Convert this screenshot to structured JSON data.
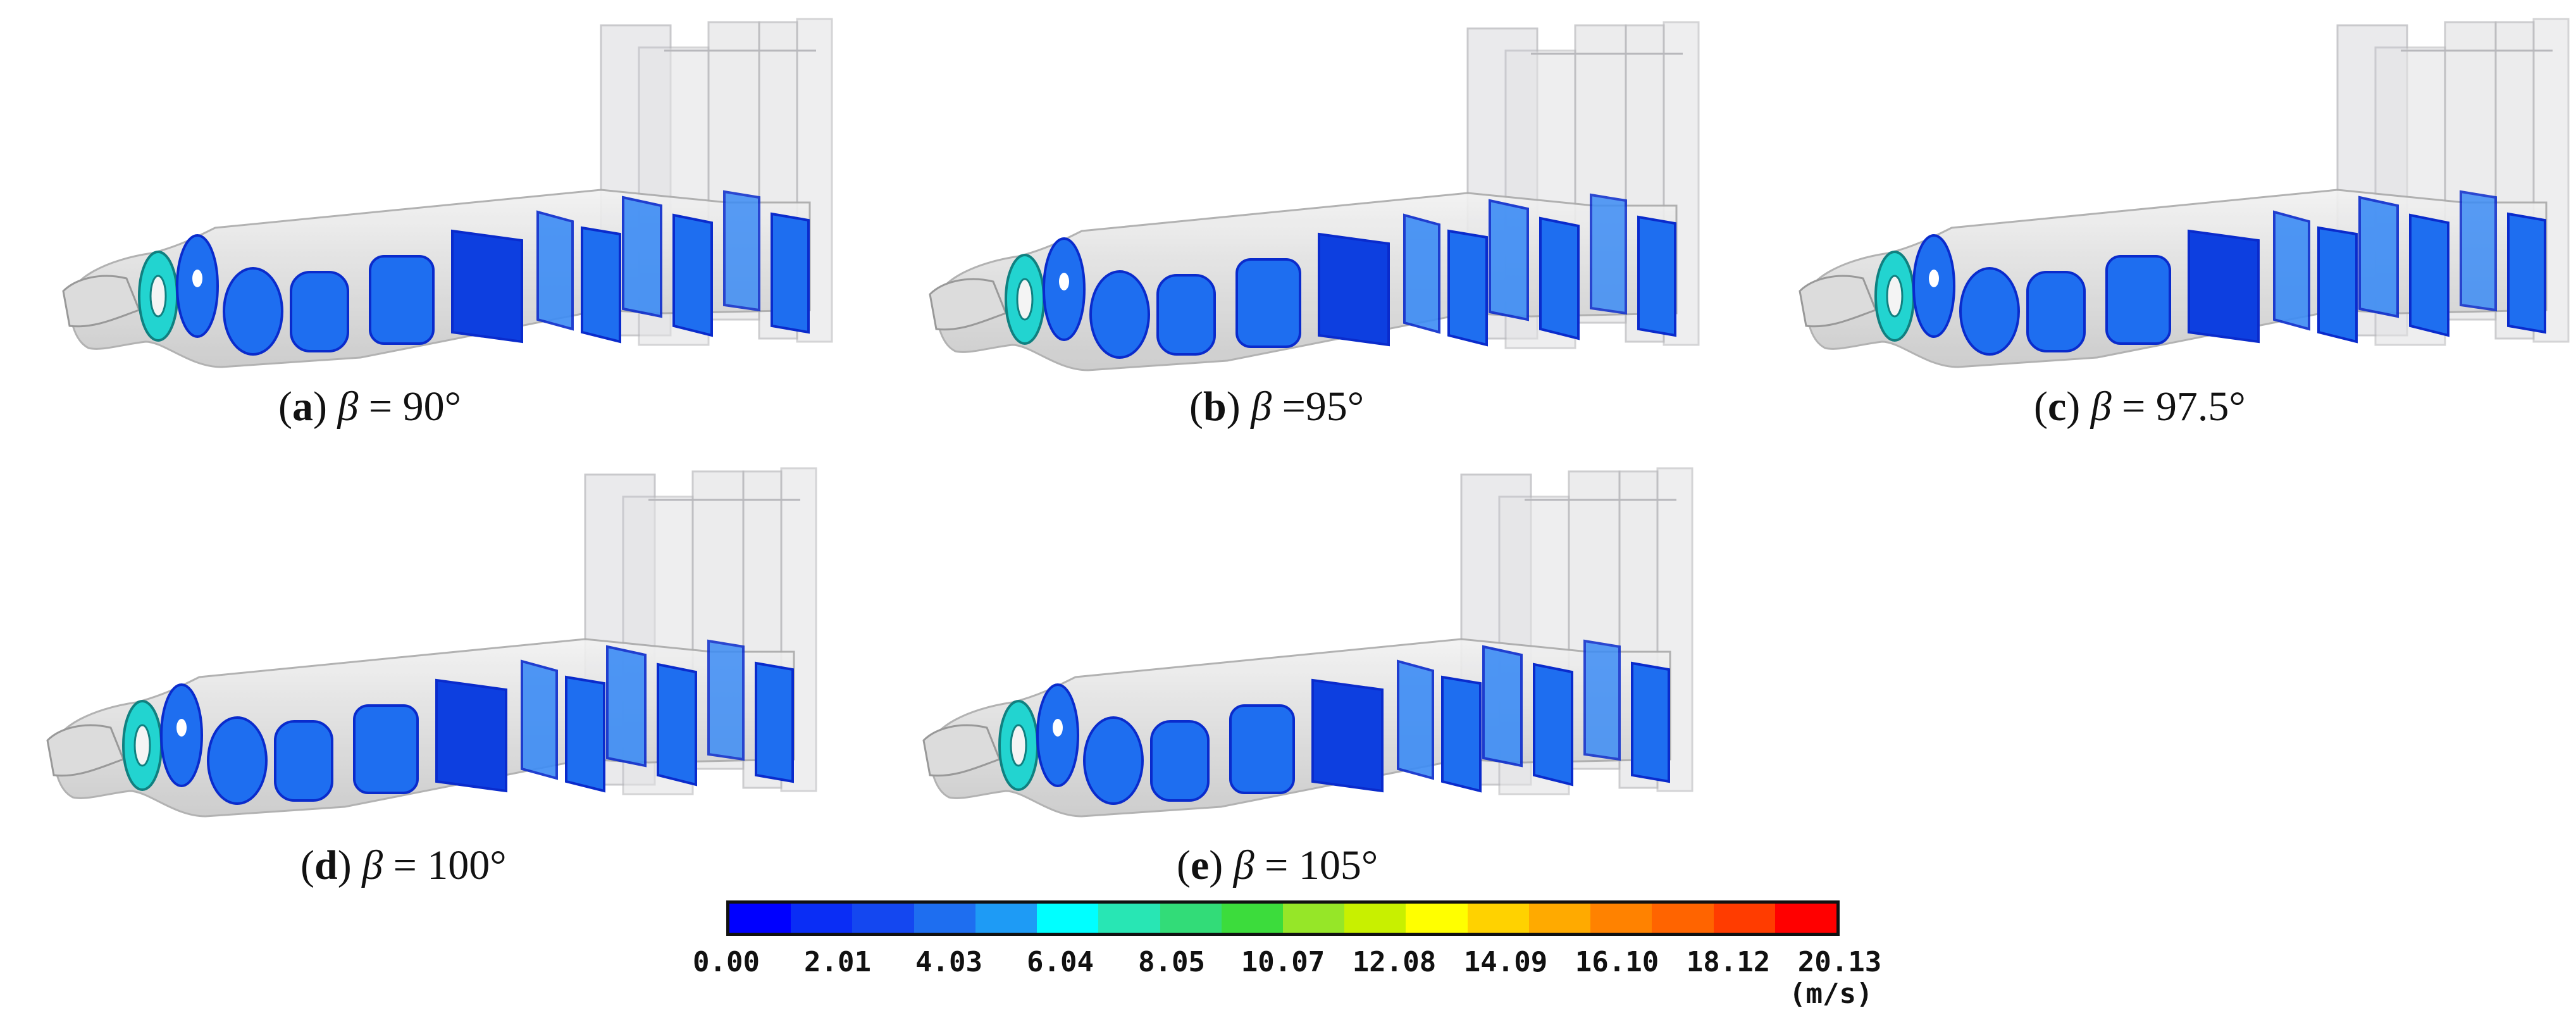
{
  "panels": [
    {
      "letter": "a",
      "symbol": "β",
      "eq": " = ",
      "value": "90°"
    },
    {
      "letter": "b",
      "symbol": "β",
      "eq": " =",
      "value": "95°"
    },
    {
      "letter": "c",
      "symbol": "β",
      "eq": " = ",
      "value": "97.5°"
    },
    {
      "letter": "d",
      "symbol": "β",
      "eq": " = ",
      "value": "100°"
    },
    {
      "letter": "e",
      "symbol": "β",
      "eq": " = ",
      "value": "105°"
    }
  ],
  "colorbar": {
    "ticks": [
      "0.00",
      "2.01",
      "4.03",
      "6.04",
      "8.05",
      "10.07",
      "12.08",
      "14.09",
      "16.10",
      "18.12",
      "20.13"
    ],
    "unit": "(m/s)",
    "range": [
      0.0,
      20.13
    ],
    "colors": [
      "#0000ff",
      "#0a2df5",
      "#1447f0",
      "#1e6ef0",
      "#1e9bf5",
      "#00ffff",
      "#28e6b4",
      "#32dc78",
      "#3cdc3c",
      "#96e628",
      "#c8f000",
      "#ffff00",
      "#ffd200",
      "#ffaa00",
      "#ff8200",
      "#ff6400",
      "#ff3c00",
      "#ff0000"
    ]
  },
  "slice_colors": {
    "dark": "#0d3fe0",
    "mid": "#1e6ef0",
    "light": "#3c8cf5",
    "inlet": "#22d4d0"
  }
}
